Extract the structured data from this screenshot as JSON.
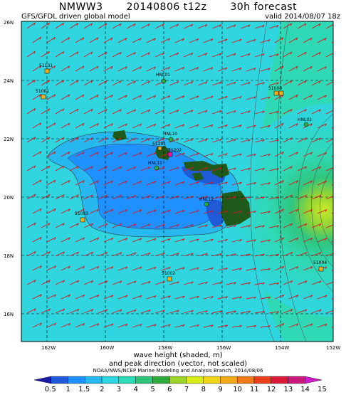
{
  "header": {
    "model": "NMWW3",
    "run": "20140806 t12z",
    "forecast": "30h forecast",
    "driver": "GFS/GFDL driven global model",
    "valid": "valid 2014/08/07 18z"
  },
  "axes": {
    "lat_labels": [
      "26N",
      "24N",
      "22N",
      "20N",
      "18N",
      "16N"
    ],
    "lon_labels": [
      "162W",
      "160W",
      "158W",
      "156W",
      "154W",
      "152W"
    ]
  },
  "stations": [
    {
      "id": "51101"
    },
    {
      "id": "51001"
    },
    {
      "id": "HNL01"
    },
    {
      "id": "51000"
    },
    {
      "id": "HNL10"
    },
    {
      "id": "51201"
    },
    {
      "id": "51202"
    },
    {
      "id": "HNL11"
    },
    {
      "id": "HNL02"
    },
    {
      "id": "HNL12"
    },
    {
      "id": "51003"
    },
    {
      "id": "51002"
    },
    {
      "id": "51004"
    }
  ],
  "legend": {
    "line1": "wave height (shaded, m)",
    "line2": "and peak direction (vector, not scaled)",
    "credit": "NOAA/NWS/NCEP Marine Modeling and Analysis Branch, 2014/08/06",
    "values": [
      "0.5",
      "1",
      "1.5",
      "2",
      "3",
      "4",
      "5",
      "6",
      "7",
      "8",
      "9",
      "10",
      "11",
      "12",
      "13",
      "14",
      "15"
    ],
    "colors": [
      "#1a1aa8",
      "#1f5bd6",
      "#1e90ff",
      "#27b8f0",
      "#2fd6e0",
      "#2fd9b5",
      "#2fc47a",
      "#2faa3c",
      "#9ad42a",
      "#d8ec1a",
      "#f0d41a",
      "#f0a81a",
      "#f07a1a",
      "#e8401a",
      "#d81a3a",
      "#c81a7a",
      "#d21ac8"
    ]
  },
  "colors": {
    "ocean_base": "#2fd6e0",
    "arrow": "#d8141c",
    "land": "#1f5a1a",
    "station": "#f0b020",
    "station_green": "#2faa3c"
  }
}
